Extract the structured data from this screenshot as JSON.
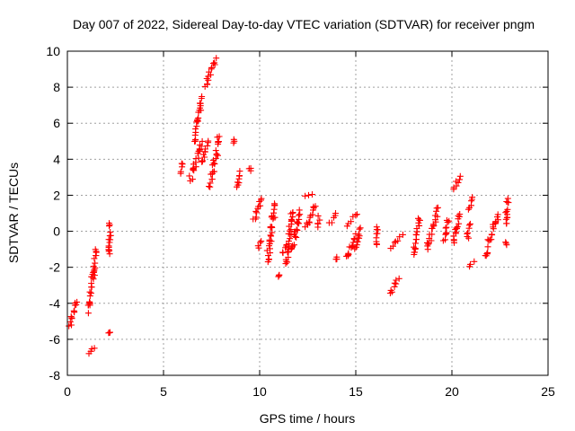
{
  "chart_data": {
    "type": "scatter",
    "title": "Day 007 of 2022, Sidereal Day-to-day VTEC variation (SDTVAR) for receiver pngm",
    "xlabel": "GPS time / hours",
    "ylabel": "SDTVAR / TECUs",
    "xlim": [
      0,
      25
    ],
    "ylim": [
      -8,
      10
    ],
    "xticks": [
      0,
      5,
      10,
      15,
      20,
      25
    ],
    "yticks": [
      -8,
      -6,
      -4,
      -2,
      0,
      2,
      4,
      6,
      8,
      10
    ],
    "grid": true,
    "marker": "+",
    "color": "#ff0000",
    "segments": [
      {
        "x": [
          0.1,
          0.5
        ],
        "y": [
          -5.3,
          -3.9
        ]
      },
      {
        "x": [
          1.1,
          1.5
        ],
        "y": [
          -4.5,
          -1.0
        ]
      },
      {
        "x": [
          1.1,
          1.4
        ],
        "y": [
          -6.8,
          -6.4
        ]
      },
      {
        "x": [
          2.2,
          2.2
        ],
        "y": [
          -1.3,
          0.4
        ]
      },
      {
        "x": [
          2.2,
          2.2
        ],
        "y": [
          -5.7,
          -5.6
        ]
      },
      {
        "x": [
          5.9,
          6.0
        ],
        "y": [
          3.2,
          3.8
        ]
      },
      {
        "x": [
          6.4,
          7.0
        ],
        "y": [
          2.8,
          5.0
        ]
      },
      {
        "x": [
          6.6,
          7.0
        ],
        "y": [
          5.0,
          7.5
        ]
      },
      {
        "x": [
          7.0,
          7.3
        ],
        "y": [
          3.8,
          5.0
        ]
      },
      {
        "x": [
          7.2,
          7.7
        ],
        "y": [
          8.0,
          9.6
        ]
      },
      {
        "x": [
          7.4,
          7.9
        ],
        "y": [
          2.5,
          5.2
        ]
      },
      {
        "x": [
          8.7,
          8.7
        ],
        "y": [
          4.9,
          5.1
        ]
      },
      {
        "x": [
          8.8,
          9.0
        ],
        "y": [
          2.4,
          3.3
        ]
      },
      {
        "x": [
          9.5,
          9.5
        ],
        "y": [
          3.4,
          3.5
        ]
      },
      {
        "x": [
          9.7,
          10.1
        ],
        "y": [
          0.6,
          1.8
        ]
      },
      {
        "x": [
          9.9,
          10.1
        ],
        "y": [
          -0.9,
          -0.5
        ]
      },
      {
        "x": [
          10.4,
          10.8
        ],
        "y": [
          -1.7,
          1.5
        ]
      },
      {
        "x": [
          11.0,
          11.0
        ],
        "y": [
          -2.5,
          -2.4
        ]
      },
      {
        "x": [
          11.2,
          11.4
        ],
        "y": [
          -1.2,
          -0.7
        ]
      },
      {
        "x": [
          11.4,
          11.7
        ],
        "y": [
          -1.8,
          1.1
        ]
      },
      {
        "x": [
          11.7,
          12.1
        ],
        "y": [
          -1.0,
          1.2
        ]
      },
      {
        "x": [
          12.4,
          12.7
        ],
        "y": [
          1.9,
          2.1
        ]
      },
      {
        "x": [
          12.4,
          12.9
        ],
        "y": [
          0.2,
          1.5
        ]
      },
      {
        "x": [
          13.0,
          13.1
        ],
        "y": [
          0.2,
          0.8
        ]
      },
      {
        "x": [
          13.6,
          14.0
        ],
        "y": [
          0.4,
          1.0
        ]
      },
      {
        "x": [
          14.0,
          14.0
        ],
        "y": [
          -1.6,
          -1.4
        ]
      },
      {
        "x": [
          14.5,
          15.1
        ],
        "y": [
          0.3,
          1.0
        ]
      },
      {
        "x": [
          14.5,
          15.0
        ],
        "y": [
          -1.6,
          -0.2
        ]
      },
      {
        "x": [
          15.0,
          15.2
        ],
        "y": [
          -1.0,
          0.2
        ]
      },
      {
        "x": [
          16.1,
          16.1
        ],
        "y": [
          -0.8,
          0.2
        ]
      },
      {
        "x": [
          16.8,
          17.2
        ],
        "y": [
          -3.5,
          -2.6
        ]
      },
      {
        "x": [
          16.8,
          17.4
        ],
        "y": [
          -1.0,
          -0.2
        ]
      },
      {
        "x": [
          18.0,
          18.3
        ],
        "y": [
          -1.3,
          0.8
        ]
      },
      {
        "x": [
          18.7,
          19.3
        ],
        "y": [
          -1.0,
          1.3
        ]
      },
      {
        "x": [
          19.6,
          19.8
        ],
        "y": [
          -0.5,
          0.6
        ]
      },
      {
        "x": [
          20.1,
          20.4
        ],
        "y": [
          2.3,
          3.1
        ]
      },
      {
        "x": [
          20.1,
          20.4
        ],
        "y": [
          -0.7,
          1.0
        ]
      },
      {
        "x": [
          20.8,
          20.9
        ],
        "y": [
          -0.4,
          0.4
        ]
      },
      {
        "x": [
          20.9,
          21.1
        ],
        "y": [
          1.2,
          1.9
        ]
      },
      {
        "x": [
          20.9,
          21.1
        ],
        "y": [
          -1.9,
          -1.7
        ]
      },
      {
        "x": [
          21.7,
          22.4
        ],
        "y": [
          -1.4,
          0.9
        ]
      },
      {
        "x": [
          22.8,
          22.9
        ],
        "y": [
          0.4,
          1.8
        ]
      },
      {
        "x": [
          22.8,
          22.8
        ],
        "y": [
          -0.7,
          -0.6
        ]
      }
    ]
  }
}
